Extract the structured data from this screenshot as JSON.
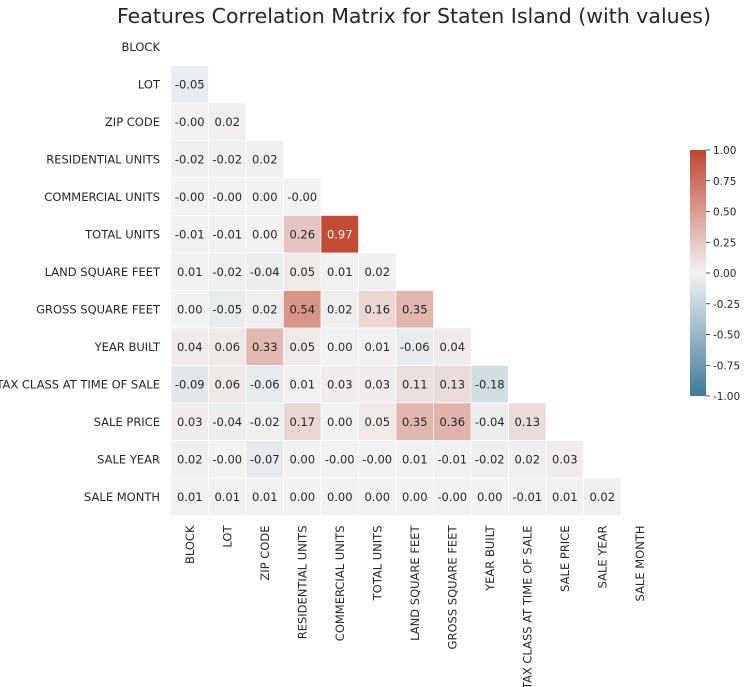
{
  "chart_data": {
    "type": "heatmap",
    "title": "Features Correlation Matrix for Staten Island (with values)",
    "labels": [
      "BLOCK",
      "LOT",
      "ZIP CODE",
      "RESIDENTIAL UNITS",
      "COMMERCIAL UNITS",
      "TOTAL UNITS",
      "LAND SQUARE FEET",
      "GROSS SQUARE FEET",
      "YEAR BUILT",
      "TAX CLASS AT TIME OF SALE",
      "SALE PRICE",
      "SALE YEAR",
      "SALE MONTH"
    ],
    "mask": "upper-triangle-and-diagonal",
    "values": [
      [],
      [
        -0.05
      ],
      [
        -0.0,
        0.02
      ],
      [
        -0.02,
        -0.02,
        0.02
      ],
      [
        -0.0,
        -0.0,
        0.0,
        -0.0
      ],
      [
        -0.01,
        -0.01,
        0.0,
        0.26,
        0.97
      ],
      [
        0.01,
        -0.02,
        -0.04,
        0.05,
        0.01,
        0.02
      ],
      [
        0.0,
        -0.05,
        0.02,
        0.54,
        0.02,
        0.16,
        0.35
      ],
      [
        0.04,
        0.06,
        0.33,
        0.05,
        0.0,
        0.01,
        -0.06,
        0.04
      ],
      [
        -0.09,
        0.06,
        -0.06,
        0.01,
        0.03,
        0.03,
        0.11,
        0.13,
        -0.18
      ],
      [
        0.03,
        -0.04,
        -0.02,
        0.17,
        0.0,
        0.05,
        0.35,
        0.36,
        -0.04,
        0.13
      ],
      [
        0.02,
        -0.0,
        -0.07,
        0.0,
        -0.0,
        -0.0,
        0.01,
        -0.01,
        -0.02,
        0.02,
        0.03
      ],
      [
        0.01,
        0.01,
        0.01,
        0.0,
        0.0,
        0.0,
        0.0,
        -0.0,
        0.0,
        -0.01,
        0.01,
        0.02
      ]
    ],
    "value_format": "2 decimals",
    "colorscale": {
      "min": -1.0,
      "center": 0.0,
      "max": 1.0,
      "low_color": "#3f7a9c",
      "mid_color": "#f2f2f2",
      "high_color": "#c0462f"
    },
    "colorbar_ticks": [
      "-1.00",
      "-0.75",
      "-0.50",
      "-0.25",
      "0.00",
      "0.25",
      "0.50",
      "0.75",
      "1.00"
    ],
    "colorbar_values": [
      -1.0,
      -0.75,
      -0.5,
      -0.25,
      0.0,
      0.25,
      0.5,
      0.75,
      1.0
    ],
    "cell_line_color": "#ffffff"
  }
}
